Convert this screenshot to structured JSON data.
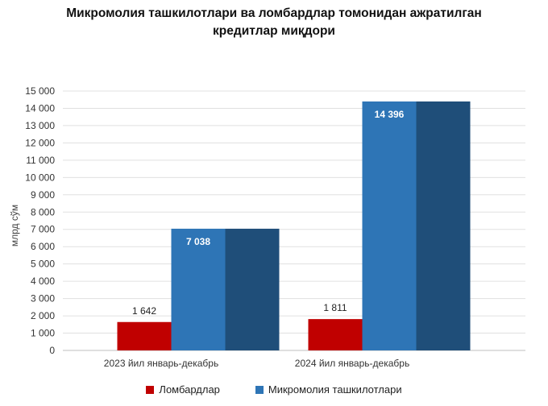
{
  "chart_data": {
    "type": "bar",
    "title_lines": [
      "Микромолия ташкилотлари ва ломбардлар томонидан ажратилган",
      "кредитлар миқдори"
    ],
    "ylabel": "млрд сўм",
    "ylim": [
      0,
      15000
    ],
    "ytick_step": 1000,
    "ytick_labels": [
      "0",
      "1 000",
      "2 000",
      "3 000",
      "4 000",
      "5 000",
      "6 000",
      "7 000",
      "8 000",
      "9 000",
      "10 000",
      "11 000",
      "12 000",
      "13 000",
      "14 000",
      "15 000"
    ],
    "grid": true,
    "categories": [
      "2023 йил январь-декабрь",
      "2024 йил январь-декабрь"
    ],
    "series": [
      {
        "name": "Ломбардлар",
        "color": "#c00000",
        "values": [
          1642,
          1811
        ],
        "labels": [
          "1 642",
          "1 811"
        ]
      },
      {
        "name": "Микромолия ташкилотлари",
        "color": "#2e75b6",
        "shade_color": "#1f4e79",
        "values": [
          7038,
          14396
        ],
        "labels": [
          "7 038",
          "14 396"
        ]
      }
    ],
    "legend_position": "bottom"
  }
}
